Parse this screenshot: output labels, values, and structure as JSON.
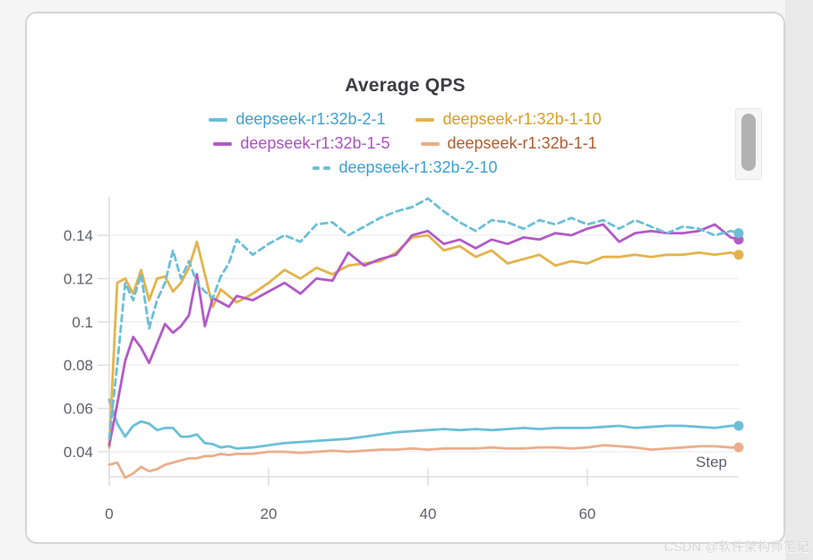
{
  "page": {
    "watermark": "CSDN @软件架构师笔记"
  },
  "chart_data": {
    "type": "line",
    "title": "Average QPS",
    "xlabel": "Step",
    "ylabel": "",
    "legend_position": "top",
    "grid": "horizontal-only",
    "xlim": [
      0,
      79
    ],
    "ylim": [
      0.028,
      0.158
    ],
    "x_ticks": [
      0,
      20,
      40,
      60
    ],
    "x_tick_labels": [
      "0",
      "20",
      "40",
      "60"
    ],
    "y_ticks": [
      0.04,
      0.06,
      0.08,
      0.1,
      0.12,
      0.14
    ],
    "y_tick_labels": [
      "0.04",
      "0.06",
      "0.08",
      "0.1",
      "0.12",
      "0.14"
    ],
    "end_point_markers": true,
    "x": [
      0,
      1,
      2,
      3,
      4,
      5,
      6,
      7,
      8,
      9,
      10,
      11,
      12,
      13,
      14,
      15,
      16,
      18,
      20,
      22,
      24,
      26,
      28,
      30,
      32,
      34,
      36,
      38,
      40,
      42,
      44,
      46,
      48,
      50,
      52,
      54,
      56,
      58,
      60,
      62,
      64,
      66,
      68,
      70,
      72,
      74,
      76,
      78,
      79
    ],
    "series": [
      {
        "name": "deepseek-r1:32b-2-1",
        "color": "#6BBFD8",
        "label_color": "#3E9FD3",
        "style": "solid",
        "values": [
          0.064,
          0.053,
          0.047,
          0.052,
          0.054,
          0.053,
          0.05,
          0.051,
          0.051,
          0.047,
          0.047,
          0.048,
          0.044,
          0.0435,
          0.042,
          0.0425,
          0.0415,
          0.042,
          0.043,
          0.044,
          0.0445,
          0.045,
          0.0455,
          0.046,
          0.047,
          0.048,
          0.049,
          0.0495,
          0.05,
          0.0505,
          0.05,
          0.0505,
          0.05,
          0.0505,
          0.051,
          0.0505,
          0.051,
          0.051,
          0.051,
          0.0515,
          0.052,
          0.051,
          0.0515,
          0.052,
          0.052,
          0.0515,
          0.051,
          0.052,
          0.052
        ]
      },
      {
        "name": "deepseek-r1:32b-1-10",
        "color": "#E3B34C",
        "label_color": "#D89D27",
        "style": "solid",
        "values": [
          0.042,
          0.118,
          0.12,
          0.113,
          0.124,
          0.11,
          0.12,
          0.121,
          0.114,
          0.118,
          0.125,
          0.137,
          0.122,
          0.107,
          0.115,
          0.112,
          0.109,
          0.113,
          0.118,
          0.124,
          0.12,
          0.125,
          0.122,
          0.126,
          0.127,
          0.128,
          0.132,
          0.139,
          0.14,
          0.133,
          0.135,
          0.13,
          0.133,
          0.127,
          0.129,
          0.131,
          0.126,
          0.128,
          0.127,
          0.13,
          0.13,
          0.131,
          0.13,
          0.131,
          0.131,
          0.132,
          0.131,
          0.132,
          0.131
        ]
      },
      {
        "name": "deepseek-r1:32b-1-5",
        "color": "#B25AC6",
        "label_color": "#AB50C5",
        "style": "solid",
        "values": [
          0.043,
          0.062,
          0.082,
          0.093,
          0.088,
          0.081,
          0.09,
          0.099,
          0.095,
          0.098,
          0.103,
          0.122,
          0.098,
          0.111,
          0.109,
          0.107,
          0.112,
          0.11,
          0.114,
          0.118,
          0.113,
          0.12,
          0.119,
          0.132,
          0.126,
          0.129,
          0.131,
          0.14,
          0.142,
          0.136,
          0.138,
          0.134,
          0.138,
          0.136,
          0.139,
          0.138,
          0.141,
          0.14,
          0.143,
          0.145,
          0.137,
          0.141,
          0.142,
          0.141,
          0.141,
          0.142,
          0.145,
          0.139,
          0.138
        ]
      },
      {
        "name": "deepseek-r1:32b-1-1",
        "color": "#EBAE8B",
        "label_color": "#B05B2F",
        "style": "solid",
        "values": [
          0.034,
          0.035,
          0.028,
          0.03,
          0.033,
          0.031,
          0.032,
          0.034,
          0.035,
          0.036,
          0.037,
          0.037,
          0.038,
          0.038,
          0.039,
          0.0385,
          0.039,
          0.039,
          0.04,
          0.04,
          0.0395,
          0.04,
          0.0405,
          0.04,
          0.0405,
          0.041,
          0.041,
          0.0415,
          0.041,
          0.0415,
          0.0415,
          0.0415,
          0.042,
          0.0415,
          0.0415,
          0.042,
          0.042,
          0.0415,
          0.042,
          0.043,
          0.0425,
          0.042,
          0.041,
          0.0415,
          0.042,
          0.0425,
          0.0425,
          0.042,
          0.042
        ]
      },
      {
        "name": "deepseek-r1:32b-2-10",
        "color": "#6BBFD8",
        "label_color": "#3E9FD3",
        "style": "dashed",
        "values": [
          0.046,
          0.08,
          0.118,
          0.11,
          0.122,
          0.097,
          0.11,
          0.118,
          0.133,
          0.12,
          0.128,
          0.118,
          0.114,
          0.111,
          0.121,
          0.127,
          0.138,
          0.131,
          0.136,
          0.14,
          0.137,
          0.145,
          0.146,
          0.14,
          0.144,
          0.148,
          0.151,
          0.153,
          0.157,
          0.151,
          0.146,
          0.142,
          0.147,
          0.146,
          0.143,
          0.147,
          0.145,
          0.148,
          0.145,
          0.147,
          0.143,
          0.147,
          0.144,
          0.141,
          0.144,
          0.143,
          0.14,
          0.142,
          0.141
        ]
      }
    ],
    "colors": {
      "grid_line": "#EDEDF2",
      "axis_line": "#DDDDE3",
      "title_text": "#3D3D44",
      "tick_text": "#5F5F6B",
      "card_border": "#D5D5D5",
      "card_background": "#FFFFFF",
      "page_background": "#F5F5F5"
    }
  }
}
